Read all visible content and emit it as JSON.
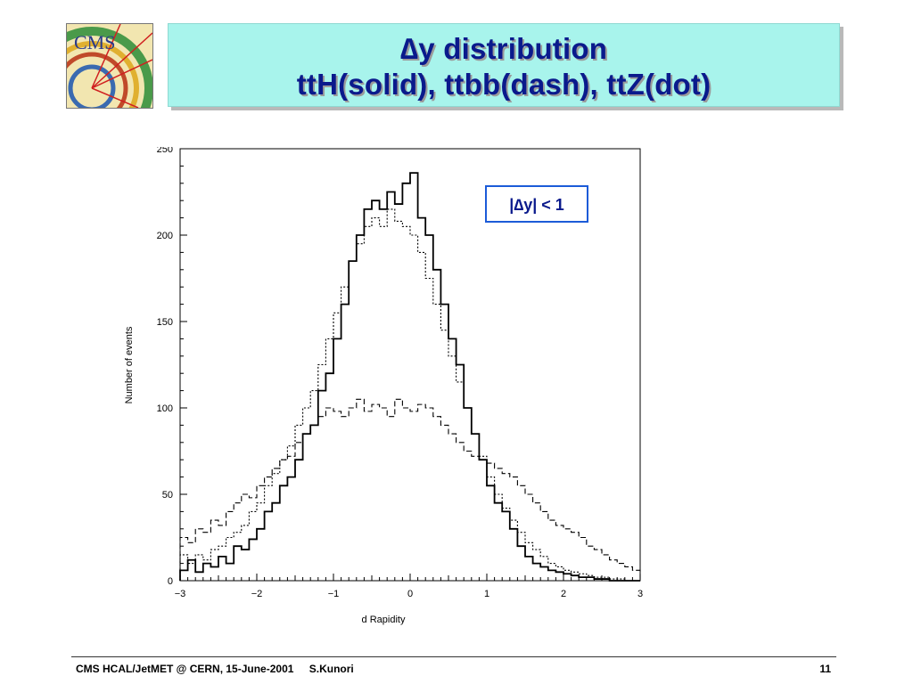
{
  "slide": {
    "logo_text": "CMS",
    "title_line1": "∆y distribution",
    "title_line2": "ttH(solid), ttbb(dash), ttZ(dot)",
    "footer_event": "CMS HCAL/JetMET @ CERN, 15-June-2001",
    "footer_author": "S.Kunori",
    "page_number": "11"
  },
  "colors": {
    "title_bg": "#a8f4ec",
    "title_text": "#0a1a8c",
    "annotation_border": "#1c5bd8"
  },
  "chart_data": {
    "type": "line",
    "title": "",
    "xlabel": "d Rapidity",
    "ylabel": "Number of events",
    "xlim": [
      -3,
      3
    ],
    "ylim": [
      0,
      250
    ],
    "xticks": [
      -3,
      -2,
      -1,
      0,
      1,
      2,
      3
    ],
    "yticks": [
      0,
      50,
      100,
      150,
      200,
      250
    ],
    "annotation": "|∆y| < 1",
    "grid": false,
    "bin_edges": [
      -3.0,
      -2.9,
      -2.8,
      -2.7,
      -2.6,
      -2.5,
      -2.4,
      -2.3,
      -2.2,
      -2.1,
      -2.0,
      -1.9,
      -1.8,
      -1.7,
      -1.6,
      -1.5,
      -1.4,
      -1.3,
      -1.2,
      -1.1,
      -1.0,
      -0.9,
      -0.8,
      -0.7,
      -0.6,
      -0.5,
      -0.4,
      -0.3,
      -0.2,
      -0.1,
      0.0,
      0.1,
      0.2,
      0.3,
      0.4,
      0.5,
      0.6,
      0.7,
      0.8,
      0.9,
      1.0,
      1.1,
      1.2,
      1.3,
      1.4,
      1.5,
      1.6,
      1.7,
      1.8,
      1.9,
      2.0,
      2.1,
      2.2,
      2.3,
      2.4,
      2.5,
      2.6,
      2.7,
      2.8,
      2.9,
      3.0
    ],
    "series": [
      {
        "name": "ttH",
        "style": "solid",
        "values": [
          6,
          12,
          5,
          10,
          8,
          14,
          10,
          20,
          18,
          24,
          30,
          40,
          45,
          55,
          60,
          70,
          85,
          90,
          110,
          120,
          140,
          160,
          185,
          200,
          215,
          220,
          215,
          225,
          218,
          230,
          236,
          210,
          200,
          180,
          160,
          140,
          125,
          100,
          85,
          70,
          55,
          45,
          40,
          30,
          20,
          14,
          10,
          8,
          6,
          5,
          4,
          3,
          2,
          2,
          1,
          1,
          0,
          0,
          0,
          0
        ]
      },
      {
        "name": "ttbb",
        "style": "dash",
        "values": [
          25,
          22,
          30,
          28,
          35,
          32,
          40,
          45,
          50,
          48,
          55,
          60,
          65,
          70,
          72,
          80,
          85,
          90,
          95,
          100,
          98,
          95,
          100,
          105,
          98,
          102,
          100,
          95,
          105,
          100,
          98,
          102,
          100,
          95,
          90,
          85,
          80,
          75,
          72,
          70,
          68,
          65,
          62,
          60,
          55,
          50,
          45,
          40,
          35,
          32,
          30,
          28,
          25,
          20,
          18,
          15,
          12,
          10,
          8,
          6
        ]
      },
      {
        "name": "ttZ",
        "style": "dot",
        "values": [
          15,
          10,
          15,
          12,
          18,
          20,
          25,
          28,
          32,
          40,
          45,
          55,
          62,
          70,
          78,
          90,
          100,
          110,
          125,
          140,
          155,
          170,
          185,
          195,
          205,
          210,
          205,
          215,
          208,
          205,
          200,
          190,
          175,
          160,
          145,
          130,
          115,
          100,
          85,
          72,
          60,
          50,
          42,
          35,
          28,
          22,
          18,
          14,
          10,
          8,
          6,
          5,
          4,
          3,
          2,
          2,
          1,
          1,
          0,
          0
        ]
      }
    ]
  }
}
